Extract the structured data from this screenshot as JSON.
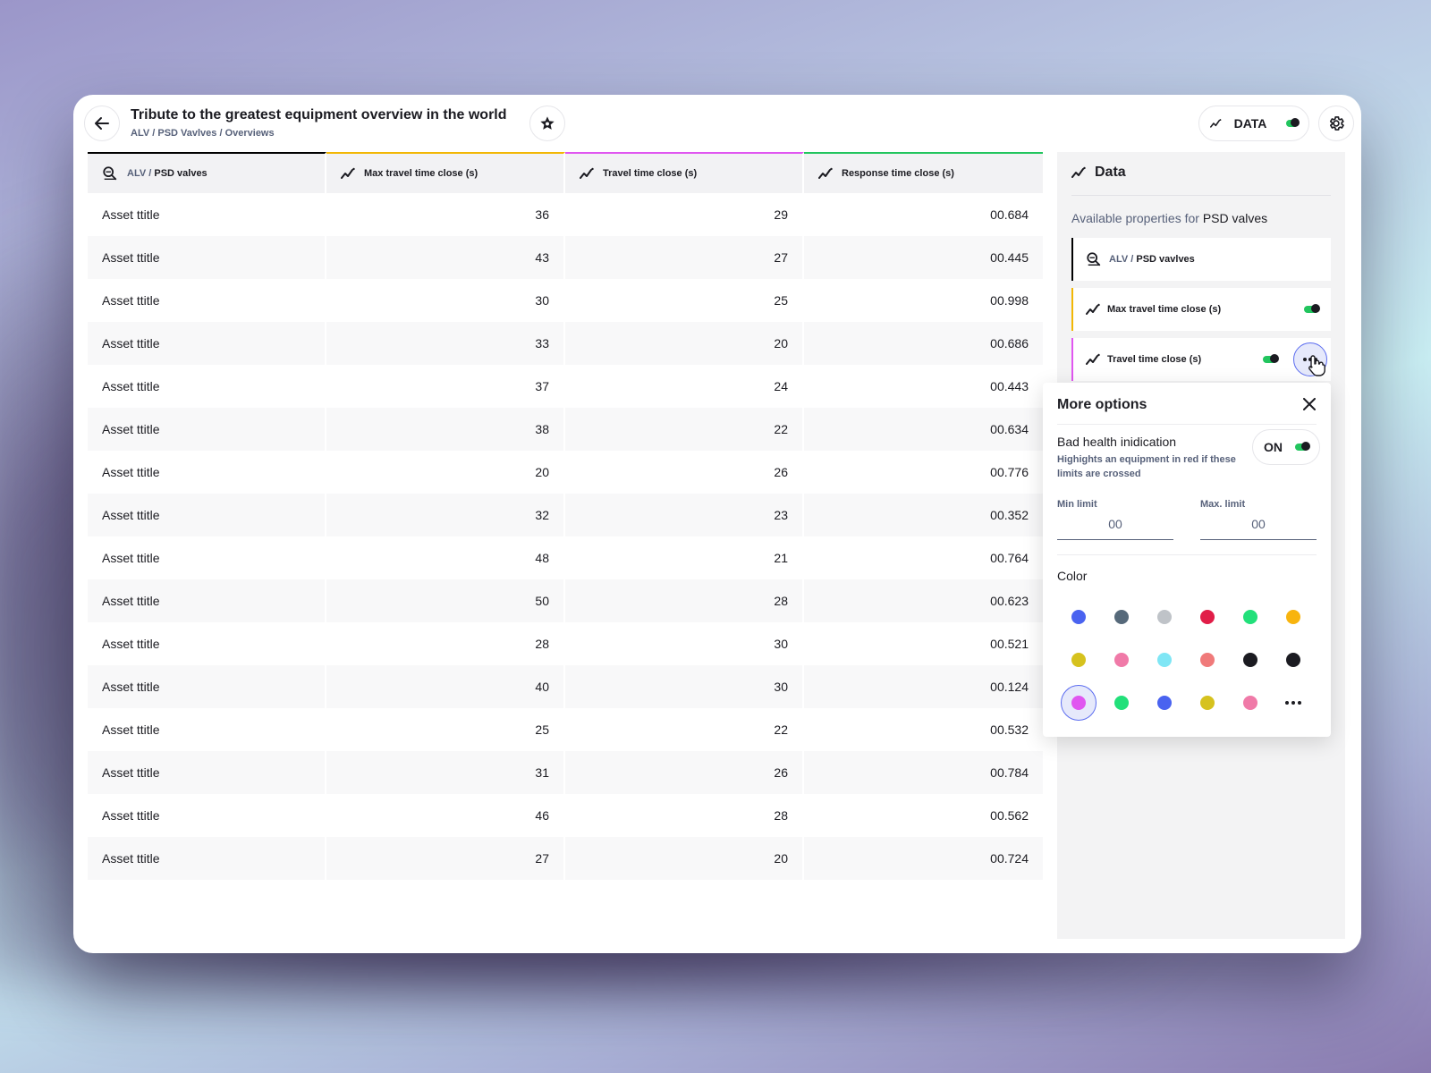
{
  "header": {
    "title": "Tribute to the greatest equipment overview in the world",
    "breadcrumb": "ALV / PSD Vavlves / Overviews",
    "data_toggle_label": "DATA"
  },
  "table": {
    "columns": [
      {
        "prefix": "ALV /",
        "label": "PSD valves",
        "icon": "asset-icon",
        "accent": "#000000"
      },
      {
        "label": "Max travel time close (s)",
        "icon": "trend-icon",
        "accent": "#f2b705"
      },
      {
        "label": "Travel time close (s)",
        "icon": "trend-icon",
        "accent": "#e056f0"
      },
      {
        "label": "Response time close (s)",
        "icon": "trend-icon",
        "accent": "#22c55e"
      }
    ],
    "rows": [
      [
        "Asset ttitle",
        "36",
        "29",
        "00.684"
      ],
      [
        "Asset ttitle",
        "43",
        "27",
        "00.445"
      ],
      [
        "Asset ttitle",
        "30",
        "25",
        "00.998"
      ],
      [
        "Asset ttitle",
        "33",
        "20",
        "00.686"
      ],
      [
        "Asset ttitle",
        "37",
        "24",
        "00.443"
      ],
      [
        "Asset ttitle",
        "38",
        "22",
        "00.634"
      ],
      [
        "Asset ttitle",
        "20",
        "26",
        "00.776"
      ],
      [
        "Asset ttitle",
        "32",
        "23",
        "00.352"
      ],
      [
        "Asset ttitle",
        "48",
        "21",
        "00.764"
      ],
      [
        "Asset ttitle",
        "50",
        "28",
        "00.623"
      ],
      [
        "Asset ttitle",
        "28",
        "30",
        "00.521"
      ],
      [
        "Asset ttitle",
        "40",
        "30",
        "00.124"
      ],
      [
        "Asset ttitle",
        "25",
        "22",
        "00.532"
      ],
      [
        "Asset ttitle",
        "31",
        "26",
        "00.784"
      ],
      [
        "Asset ttitle",
        "46",
        "28",
        "00.562"
      ],
      [
        "Asset ttitle",
        "27",
        "20",
        "00.724"
      ]
    ]
  },
  "panel": {
    "title": "Data",
    "available_prefix": "Available properties for",
    "available_target": "PSD valves",
    "properties": [
      {
        "prefix": "ALV /",
        "label": "PSD vavlves",
        "icon": "asset-icon",
        "accent": "#000000",
        "toggle": false
      },
      {
        "label": "Max travel time close (s)",
        "icon": "trend-icon",
        "accent": "#f2b705",
        "toggle": true
      },
      {
        "label": "Travel time close (s)",
        "icon": "trend-icon",
        "accent": "#e056f0",
        "toggle": true
      }
    ]
  },
  "popover": {
    "title": "More options",
    "bad_health_label": "Bad health inidication",
    "bad_health_desc": "Highights an equipment in red if these limits are crossed",
    "toggle_label": "ON",
    "min_limit_label": "Min limit",
    "min_limit_value": "00",
    "max_limit_label": "Max. limit",
    "max_limit_value": "00",
    "color_label": "Color",
    "colors": [
      "#4a63f0",
      "#56697a",
      "#bfc3c8",
      "#e11d48",
      "#22e07a",
      "#f8b40e",
      "#d6c21e",
      "#f07aa8",
      "#7fe6f5",
      "#f07a7a",
      "#1b1b21",
      "#1b1b21",
      "#e056f0",
      "#22e07a",
      "#4a63f0",
      "#d6c21e",
      "#f07aa8"
    ],
    "selected_color_index": 12
  }
}
